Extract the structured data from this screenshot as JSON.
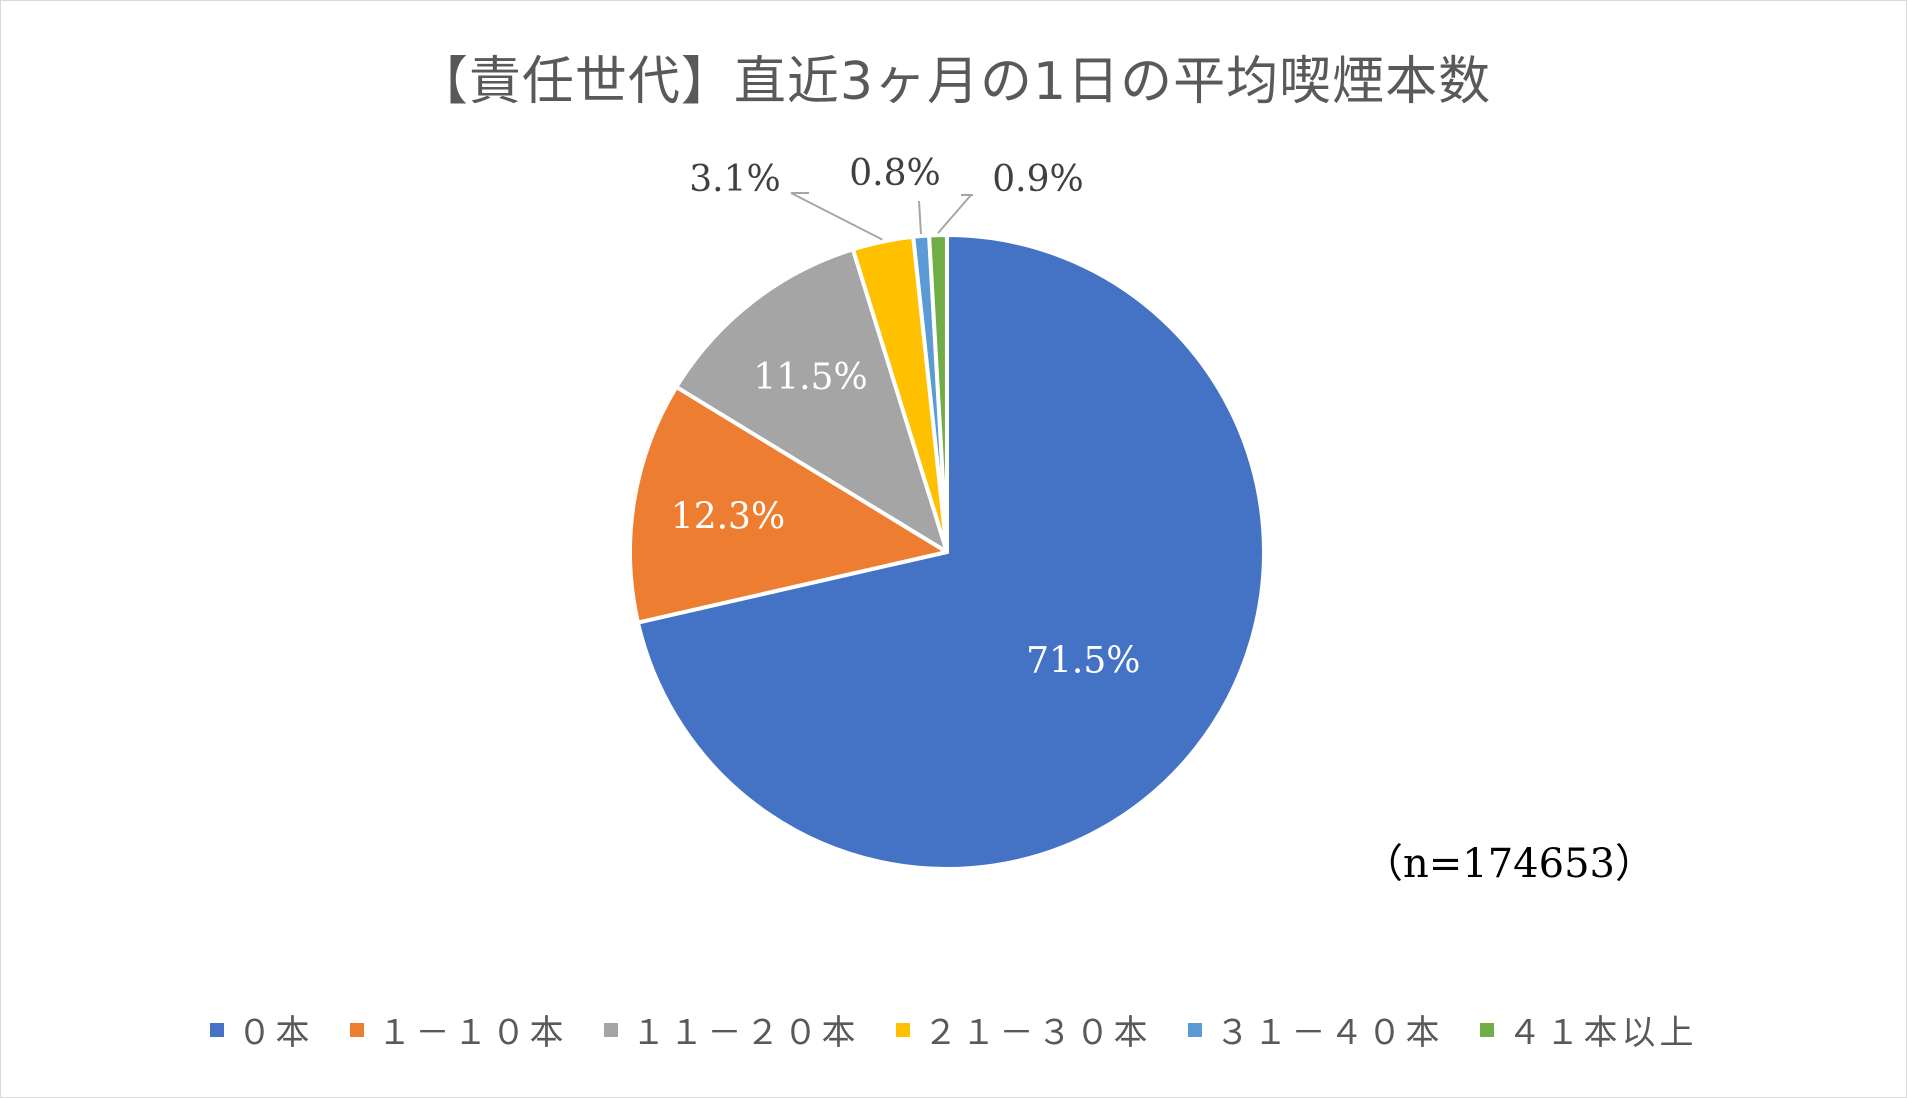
{
  "chart_data": {
    "type": "pie",
    "title": "【責任世代】直近3ヶ月の1日の平均喫煙本数",
    "annotation": "（n=174653）",
    "categories": [
      "０本",
      "１－１０本",
      "１１－２０本",
      "２１－３０本",
      "３１－４０本",
      "４１本以上"
    ],
    "values": [
      71.5,
      12.3,
      11.5,
      3.1,
      0.8,
      0.9
    ],
    "labels": [
      "71.5%",
      "12.3%",
      "11.5%",
      "3.1%",
      "0.8%",
      "0.9%"
    ],
    "colors": [
      "#4472C4",
      "#ED7D31",
      "#A5A5A5",
      "#FFC000",
      "#5B9BD5",
      "#70AD47"
    ],
    "start_angle_deg": 0,
    "direction": "clockwise",
    "legend_position": "bottom"
  }
}
